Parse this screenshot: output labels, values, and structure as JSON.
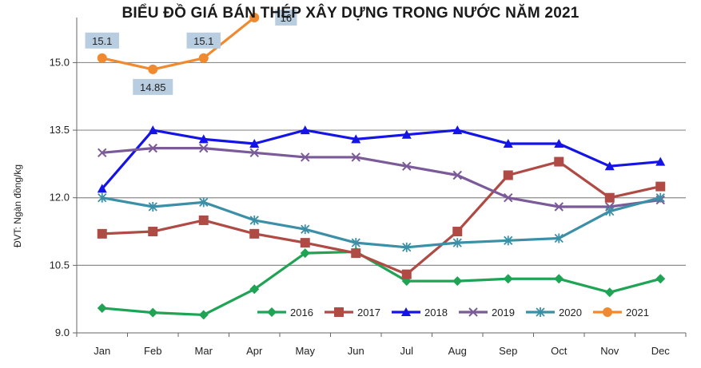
{
  "chart_data": {
    "type": "line",
    "title": "BIỂU ĐỒ GIÁ BÁN THÉP XÂY DỰNG TRONG NƯỚC NĂM 2021",
    "xlabel": "",
    "ylabel": "ĐVT: Ngàn đồng/kg",
    "ylim": [
      9.0,
      16.0
    ],
    "yticks": [
      "9.0",
      "10.5",
      "12.0",
      "13.5",
      "15.0"
    ],
    "grid": true,
    "legend_position": "bottom-inside",
    "categories": [
      "Jan",
      "Feb",
      "Mar",
      "Apr",
      "May",
      "Jun",
      "Jul",
      "Aug",
      "Sep",
      "Oct",
      "Nov",
      "Dec"
    ],
    "series": [
      {
        "name": "2016",
        "color": "#1fa355",
        "marker": "diamond",
        "values": [
          9.55,
          9.45,
          9.4,
          9.97,
          10.77,
          10.8,
          10.15,
          10.15,
          10.2,
          10.2,
          9.9,
          10.2
        ]
      },
      {
        "name": "2017",
        "color": "#b04a44",
        "marker": "square",
        "values": [
          11.2,
          11.25,
          11.5,
          11.2,
          11.0,
          10.77,
          10.3,
          11.25,
          12.5,
          12.8,
          12.0,
          12.25
        ]
      },
      {
        "name": "2018",
        "color": "#1414e6",
        "marker": "triangle",
        "values": [
          12.2,
          13.5,
          13.3,
          13.2,
          13.5,
          13.3,
          13.4,
          13.5,
          13.2,
          13.2,
          12.7,
          12.8
        ]
      },
      {
        "name": "2019",
        "color": "#7a5a98",
        "marker": "x",
        "values": [
          13.0,
          13.1,
          13.1,
          13.0,
          12.9,
          12.9,
          12.7,
          12.5,
          12.0,
          11.8,
          11.8,
          11.95
        ]
      },
      {
        "name": "2020",
        "color": "#3b8fa6",
        "marker": "star",
        "values": [
          12.0,
          11.8,
          11.9,
          11.5,
          11.3,
          11.0,
          10.9,
          11.0,
          11.05,
          11.1,
          11.7,
          12.0
        ]
      },
      {
        "name": "2021",
        "color": "#f08a30",
        "marker": "circle",
        "values": [
          15.1,
          14.85,
          15.1,
          16.0,
          null,
          null,
          null,
          null,
          null,
          null,
          null,
          null
        ],
        "data_labels": [
          "15.1",
          "14.85",
          "15.1",
          "16"
        ]
      }
    ]
  }
}
